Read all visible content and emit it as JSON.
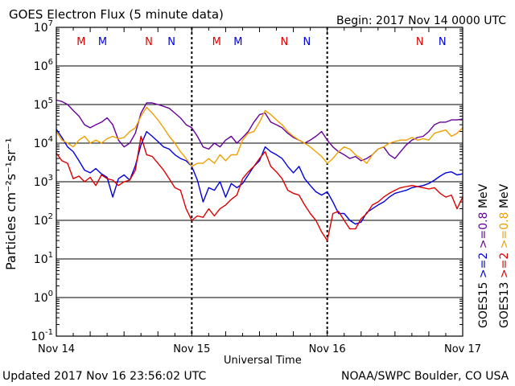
{
  "header": {
    "title": "GOES Electron Flux (5 minute data)",
    "begin": "Begin: 2017 Nov 14 0000 UTC"
  },
  "footer": {
    "updated": "Updated 2017 Nov 16 23:56:02 UTC",
    "source": "NOAA/SWPC Boulder, CO USA"
  },
  "colors": {
    "blue": "#0000dd",
    "red": "#dd0000",
    "purple": "#660099",
    "orange": "#eea000",
    "black": "#000000"
  },
  "chart_data": {
    "type": "line",
    "title": "GOES Electron Flux (5 minute data)",
    "xlabel": "Universal Time",
    "ylabel": "Particles cm⁻²s⁻¹sr⁻¹",
    "yscale": "log",
    "ylim": [
      0.1,
      10000000
    ],
    "xlim": [
      0,
      72
    ],
    "x_unit": "hours since 2017 Nov 14 0000 UTC",
    "x_ticks": [
      {
        "x": 0,
        "label": "Nov 14"
      },
      {
        "x": 24,
        "label": "Nov 15"
      },
      {
        "x": 48,
        "label": "Nov 16"
      },
      {
        "x": 72,
        "label": "Nov 17"
      }
    ],
    "y_ticks": [
      {
        "v": 10000000,
        "base": "10",
        "exp": "7"
      },
      {
        "v": 1000000,
        "base": "10",
        "exp": "6"
      },
      {
        "v": 100000,
        "base": "10",
        "exp": "5"
      },
      {
        "v": 10000,
        "base": "10",
        "exp": "4"
      },
      {
        "v": 1000,
        "base": "10",
        "exp": "3"
      },
      {
        "v": 100,
        "base": "10",
        "exp": "2"
      },
      {
        "v": 10,
        "base": "10",
        "exp": "1"
      },
      {
        "v": 1,
        "base": "10",
        "exp": "0"
      },
      {
        "v": 0.1,
        "base": "10",
        "exp": "-1"
      }
    ],
    "threshold": 1000,
    "day_markers": [
      24,
      48
    ],
    "markers": [
      {
        "x": 4.4,
        "label": "M",
        "color": "red"
      },
      {
        "x": 8.2,
        "label": "M",
        "color": "blue"
      },
      {
        "x": 16.4,
        "label": "N",
        "color": "red"
      },
      {
        "x": 20.4,
        "label": "N",
        "color": "blue"
      },
      {
        "x": 28.4,
        "label": "M",
        "color": "red"
      },
      {
        "x": 32.2,
        "label": "M",
        "color": "blue"
      },
      {
        "x": 40.4,
        "label": "N",
        "color": "red"
      },
      {
        "x": 44.4,
        "label": "N",
        "color": "blue"
      },
      {
        "x": 64.4,
        "label": "N",
        "color": "red"
      },
      {
        "x": 68.4,
        "label": "N",
        "color": "blue"
      }
    ],
    "legend": {
      "right1": [
        {
          "text": "GOES15",
          "color": "black"
        },
        {
          "text": ">=2",
          "color": "blue"
        },
        {
          "text": ">=0.8",
          "color": "purple"
        },
        {
          "text": "MeV",
          "color": "black"
        }
      ],
      "right2": [
        {
          "text": "GOES13",
          "color": "black"
        },
        {
          "text": ">=2",
          "color": "red"
        },
        {
          "text": ">=0.8",
          "color": "orange"
        },
        {
          "text": "MeV",
          "color": "black"
        }
      ]
    },
    "series": [
      {
        "name": "GOES15 >=2 MeV",
        "color": "blue",
        "x": [
          0,
          1,
          2,
          3,
          4,
          5,
          6,
          7,
          8,
          9,
          10,
          11,
          12,
          13,
          14,
          15,
          16,
          17,
          18,
          19,
          20,
          21,
          22,
          23,
          24,
          25,
          26,
          27,
          28,
          29,
          30,
          31,
          32,
          33,
          34,
          35,
          36,
          37,
          38,
          39,
          40,
          41,
          42,
          43,
          44,
          45,
          46,
          47,
          48,
          49,
          50,
          51,
          52,
          53,
          54,
          55,
          56,
          57,
          58,
          59,
          60,
          61,
          62,
          63,
          64,
          65,
          66,
          67,
          68,
          69,
          70,
          71,
          72
        ],
        "y": [
          23000,
          14000,
          8000,
          6000,
          3500,
          2000,
          1700,
          2200,
          1600,
          1300,
          400,
          1200,
          1500,
          1100,
          2600,
          9000,
          20000,
          15000,
          11000,
          8000,
          7000,
          5000,
          4000,
          3500,
          2500,
          1100,
          300,
          700,
          600,
          1000,
          400,
          900,
          700,
          900,
          1500,
          2500,
          3500,
          8000,
          6000,
          5000,
          4000,
          2500,
          1700,
          2500,
          1200,
          800,
          550,
          450,
          550,
          300,
          150,
          150,
          100,
          80,
          90,
          160,
          200,
          250,
          300,
          400,
          500,
          550,
          600,
          700,
          750,
          800,
          900,
          1100,
          1400,
          1700,
          1800,
          1500,
          1600
        ]
      },
      {
        "name": "GOES15 >=0.8 MeV",
        "color": "purple",
        "x": [
          0,
          1,
          2,
          3,
          4,
          5,
          6,
          7,
          8,
          9,
          10,
          11,
          12,
          13,
          14,
          15,
          16,
          17,
          18,
          19,
          20,
          21,
          22,
          23,
          24,
          25,
          26,
          27,
          28,
          29,
          30,
          31,
          32,
          33,
          34,
          35,
          36,
          37,
          38,
          39,
          40,
          41,
          42,
          43,
          44,
          45,
          46,
          47,
          48,
          49,
          50,
          51,
          52,
          53,
          54,
          55,
          56,
          57,
          58,
          59,
          60,
          61,
          62,
          63,
          64,
          65,
          66,
          67,
          68,
          69,
          70,
          71,
          72
        ],
        "y": [
          130000,
          120000,
          100000,
          70000,
          50000,
          30000,
          25000,
          30000,
          35000,
          45000,
          30000,
          12000,
          8000,
          10000,
          18000,
          60000,
          110000,
          110000,
          100000,
          90000,
          80000,
          60000,
          45000,
          30000,
          25000,
          15000,
          8000,
          7000,
          10000,
          8000,
          12000,
          15000,
          10000,
          14000,
          20000,
          35000,
          55000,
          60000,
          35000,
          30000,
          25000,
          18000,
          14000,
          12000,
          10000,
          12000,
          15000,
          20000,
          12000,
          8000,
          6000,
          5000,
          4000,
          4500,
          3500,
          4000,
          5000,
          7000,
          8000,
          5000,
          4000,
          6000,
          9000,
          12000,
          14000,
          15000,
          20000,
          30000,
          35000,
          35000,
          40000,
          40000,
          42000
        ]
      },
      {
        "name": "GOES13 >=2 MeV",
        "color": "red",
        "x": [
          0,
          1,
          2,
          3,
          4,
          5,
          6,
          7,
          8,
          9,
          10,
          11,
          12,
          13,
          14,
          15,
          16,
          17,
          18,
          19,
          20,
          21,
          22,
          23,
          24,
          25,
          26,
          27,
          28,
          29,
          30,
          31,
          32,
          33,
          34,
          35,
          36,
          37,
          38,
          39,
          40,
          41,
          42,
          43,
          44,
          45,
          46,
          47,
          48,
          49,
          50,
          51,
          52,
          53,
          54,
          55,
          56,
          57,
          58,
          59,
          60,
          61,
          62,
          63,
          64,
          65,
          66,
          67,
          68,
          69,
          70,
          71,
          72
        ],
        "y": [
          5500,
          3500,
          3000,
          1200,
          1400,
          1000,
          1300,
          800,
          1500,
          1200,
          1100,
          800,
          1000,
          1100,
          2000,
          15000,
          5000,
          4500,
          3000,
          2000,
          1200,
          700,
          600,
          200,
          100,
          130,
          120,
          200,
          130,
          200,
          250,
          350,
          450,
          1200,
          1800,
          2500,
          4000,
          6000,
          2500,
          1800,
          1200,
          600,
          500,
          450,
          250,
          150,
          100,
          50,
          30,
          150,
          170,
          100,
          60,
          60,
          110,
          150,
          250,
          300,
          400,
          500,
          600,
          700,
          750,
          800,
          750,
          700,
          650,
          700,
          500,
          400,
          450,
          200,
          400
        ]
      },
      {
        "name": "GOES13 >=0.8 MeV",
        "color": "orange",
        "x": [
          0,
          1,
          2,
          3,
          4,
          5,
          6,
          7,
          8,
          9,
          10,
          11,
          12,
          13,
          14,
          15,
          16,
          17,
          18,
          19,
          20,
          21,
          22,
          23,
          24,
          25,
          26,
          27,
          28,
          29,
          30,
          31,
          32,
          33,
          34,
          35,
          36,
          37,
          38,
          39,
          40,
          41,
          42,
          43,
          44,
          45,
          46,
          47,
          48,
          49,
          50,
          51,
          52,
          53,
          54,
          55,
          56,
          57,
          58,
          59,
          60,
          61,
          62,
          63,
          64,
          65,
          66,
          67,
          68,
          69,
          70,
          71,
          72
        ],
        "y": [
          20000,
          12000,
          10000,
          8000,
          12000,
          15000,
          10000,
          12000,
          10000,
          13000,
          15000,
          13000,
          14000,
          20000,
          25000,
          50000,
          85000,
          60000,
          40000,
          25000,
          15000,
          10000,
          6000,
          4000,
          2500,
          3000,
          3000,
          4000,
          3000,
          5000,
          3500,
          5000,
          5000,
          12000,
          18000,
          20000,
          35000,
          70000,
          55000,
          40000,
          30000,
          20000,
          15000,
          12000,
          10000,
          8000,
          6000,
          4500,
          3000,
          4000,
          6000,
          8000,
          7000,
          5000,
          4000,
          3000,
          5000,
          7000,
          8000,
          10000,
          11000,
          12000,
          12000,
          14000,
          12000,
          13000,
          12000,
          18000,
          20000,
          22000,
          15000,
          18000,
          25000
        ]
      }
    ]
  }
}
